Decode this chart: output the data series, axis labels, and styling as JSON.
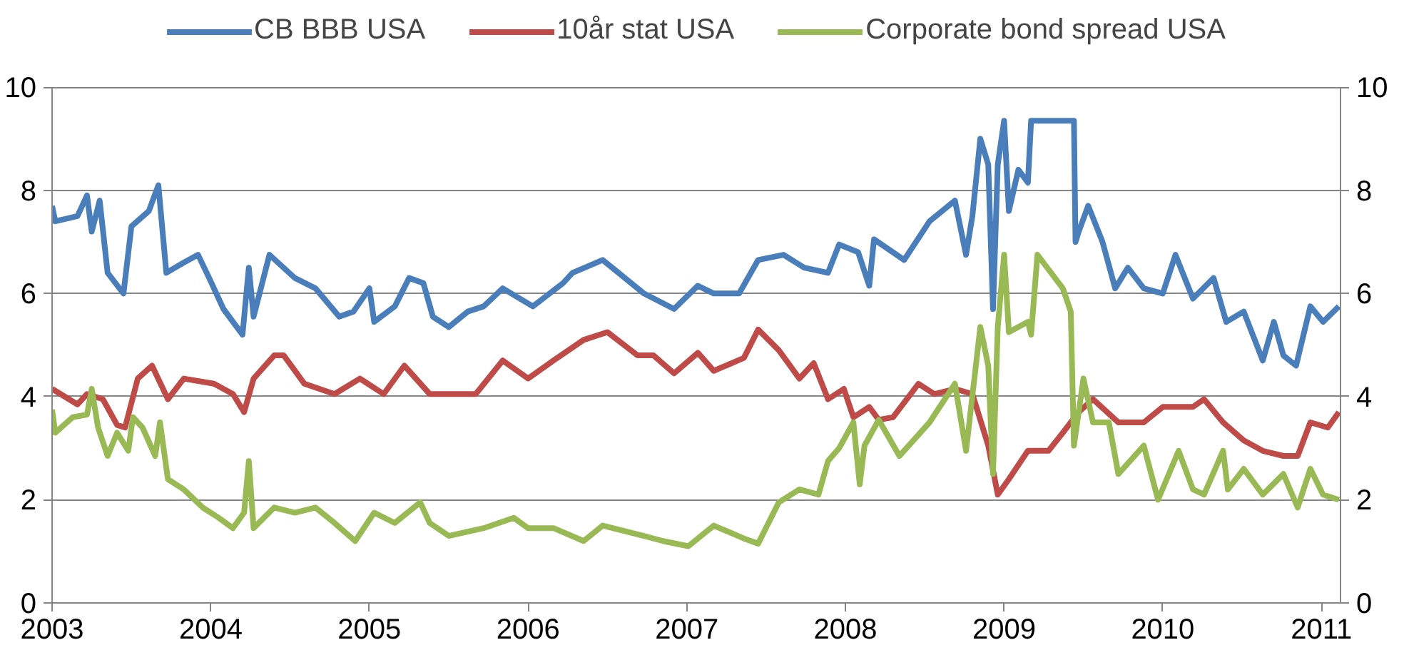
{
  "chart_data": {
    "type": "line",
    "legend": "top",
    "grid": "y",
    "line_style": "solid",
    "xlim": [
      2003,
      2011.12
    ],
    "xticks": [
      2003,
      2004,
      2005,
      2006,
      2007,
      2008,
      2009,
      2010,
      2011
    ],
    "ylim": [
      0,
      10
    ],
    "yticks": [
      0,
      2,
      4,
      6,
      8,
      10
    ],
    "y2lim": [
      0,
      10
    ],
    "y2ticks": [
      0,
      2,
      4,
      6,
      8,
      10
    ],
    "series": [
      {
        "name": "CB BBB USA",
        "color": "#4a7ebb",
        "x": [
          2003.0,
          2003.02,
          2003.16,
          2003.22,
          2003.25,
          2003.3,
          2003.35,
          2003.45,
          2003.5,
          2003.61,
          2003.67,
          2003.72,
          2003.83,
          2003.92,
          2003.99,
          2004.08,
          2004.2,
          2004.24,
          2004.27,
          2004.37,
          2004.53,
          2004.66,
          2004.81,
          2004.9,
          2005.0,
          2005.03,
          2005.16,
          2005.25,
          2005.34,
          2005.4,
          2005.5,
          2005.62,
          2005.72,
          2005.84,
          2006.03,
          2006.22,
          2006.28,
          2006.47,
          2006.57,
          2006.73,
          2006.92,
          2007.07,
          2007.17,
          2007.33,
          2007.45,
          2007.61,
          2007.74,
          2007.89,
          2007.96,
          2008.08,
          2008.15,
          2008.18,
          2008.37,
          2008.53,
          2008.69,
          2008.76,
          2008.8,
          2008.85,
          2008.9,
          2008.93,
          2008.96,
          2009.0,
          2009.03,
          2009.09,
          2009.15,
          2009.17,
          2009.44,
          2009.45,
          2009.47,
          2009.53,
          2009.62,
          2009.7,
          2009.78,
          2009.88,
          2010.0,
          2010.08,
          2010.19,
          2010.32,
          2010.4,
          2010.51,
          2010.63,
          2010.7,
          2010.76,
          2010.84,
          2010.93,
          2011.01,
          2011.11
        ],
        "values": [
          7.7,
          7.4,
          7.5,
          7.9,
          7.2,
          7.8,
          6.4,
          6.0,
          7.3,
          7.6,
          8.1,
          6.4,
          6.6,
          6.75,
          6.3,
          5.7,
          5.2,
          6.5,
          5.55,
          6.75,
          6.3,
          6.1,
          5.55,
          5.65,
          6.1,
          5.45,
          5.75,
          6.3,
          6.2,
          5.55,
          5.35,
          5.65,
          5.75,
          6.1,
          5.75,
          6.2,
          6.4,
          6.65,
          6.4,
          6.0,
          5.7,
          6.15,
          6.0,
          6.0,
          6.65,
          6.75,
          6.5,
          6.4,
          6.95,
          6.8,
          6.15,
          7.05,
          6.65,
          7.4,
          7.8,
          6.75,
          7.5,
          9.0,
          8.5,
          5.7,
          8.5,
          9.35,
          7.6,
          8.4,
          8.15,
          9.35,
          9.35,
          7.0,
          7.2,
          7.7,
          7.0,
          6.1,
          6.5,
          6.1,
          6.0,
          6.75,
          5.9,
          6.3,
          5.45,
          5.65,
          4.7,
          5.45,
          4.8,
          4.6,
          5.75,
          5.45,
          5.75
        ]
      },
      {
        "name": "10år stat USA",
        "color": "#be4b48",
        "x": [
          2003.0,
          2003.16,
          2003.22,
          2003.32,
          2003.41,
          2003.46,
          2003.54,
          2003.63,
          2003.73,
          2003.83,
          2004.02,
          2004.14,
          2004.21,
          2004.27,
          2004.4,
          2004.46,
          2004.59,
          2004.78,
          2004.94,
          2005.09,
          2005.22,
          2005.38,
          2005.5,
          2005.67,
          2005.84,
          2006.0,
          2006.16,
          2006.35,
          2006.5,
          2006.69,
          2006.79,
          2006.92,
          2007.07,
          2007.17,
          2007.36,
          2007.45,
          2007.58,
          2007.71,
          2007.8,
          2007.89,
          2007.99,
          2008.05,
          2008.15,
          2008.21,
          2008.3,
          2008.46,
          2008.56,
          2008.69,
          2008.8,
          2008.9,
          2008.96,
          2009.03,
          2009.15,
          2009.28,
          2009.37,
          2009.47,
          2009.56,
          2009.72,
          2009.88,
          2010.0,
          2010.19,
          2010.26,
          2010.38,
          2010.51,
          2010.63,
          2010.76,
          2010.85,
          2010.93,
          2011.04,
          2011.11
        ],
        "values": [
          4.15,
          3.85,
          4.05,
          3.95,
          3.45,
          3.4,
          4.35,
          4.6,
          3.95,
          4.35,
          4.25,
          4.05,
          3.7,
          4.35,
          4.8,
          4.8,
          4.25,
          4.05,
          4.35,
          4.05,
          4.6,
          4.05,
          4.05,
          4.05,
          4.7,
          4.35,
          4.7,
          5.1,
          5.25,
          4.8,
          4.8,
          4.45,
          4.85,
          4.5,
          4.75,
          5.3,
          4.9,
          4.35,
          4.65,
          3.95,
          4.15,
          3.6,
          3.8,
          3.55,
          3.6,
          4.25,
          4.05,
          4.15,
          4.05,
          3.05,
          2.1,
          2.4,
          2.95,
          2.95,
          3.3,
          3.7,
          3.95,
          3.5,
          3.5,
          3.8,
          3.8,
          3.95,
          3.5,
          3.15,
          2.95,
          2.85,
          2.85,
          3.5,
          3.4,
          3.7
        ]
      },
      {
        "name": "Corporate bond spread USA",
        "color": "#98b954",
        "x": [
          2003.0,
          2003.02,
          2003.13,
          2003.22,
          2003.25,
          2003.29,
          2003.35,
          2003.41,
          2003.48,
          2003.51,
          2003.57,
          2003.65,
          2003.68,
          2003.73,
          2003.83,
          2003.95,
          2004.05,
          2004.14,
          2004.21,
          2004.24,
          2004.27,
          2004.4,
          2004.53,
          2004.66,
          2004.78,
          2004.91,
          2005.03,
          2005.16,
          2005.32,
          2005.38,
          2005.5,
          2005.72,
          2005.91,
          2006.0,
          2006.16,
          2006.35,
          2006.47,
          2006.73,
          2006.85,
          2007.01,
          2007.17,
          2007.36,
          2007.45,
          2007.58,
          2007.71,
          2007.83,
          2007.89,
          2007.96,
          2008.05,
          2008.09,
          2008.12,
          2008.21,
          2008.34,
          2008.53,
          2008.69,
          2008.76,
          2008.85,
          2008.9,
          2008.93,
          2008.96,
          2009.0,
          2009.03,
          2009.15,
          2009.17,
          2009.21,
          2009.37,
          2009.42,
          2009.44,
          2009.5,
          2009.56,
          2009.66,
          2009.72,
          2009.88,
          2009.97,
          2010.1,
          2010.19,
          2010.26,
          2010.38,
          2010.41,
          2010.51,
          2010.63,
          2010.76,
          2010.85,
          2010.93,
          2011.01,
          2011.11
        ],
        "values": [
          3.75,
          3.3,
          3.6,
          3.65,
          4.15,
          3.4,
          2.85,
          3.3,
          2.95,
          3.6,
          3.4,
          2.85,
          3.5,
          2.4,
          2.2,
          1.85,
          1.65,
          1.45,
          1.75,
          2.75,
          1.45,
          1.85,
          1.75,
          1.85,
          1.55,
          1.2,
          1.75,
          1.55,
          1.95,
          1.55,
          1.3,
          1.45,
          1.65,
          1.45,
          1.45,
          1.2,
          1.5,
          1.3,
          1.2,
          1.1,
          1.5,
          1.25,
          1.15,
          1.95,
          2.2,
          2.1,
          2.75,
          3.0,
          3.5,
          2.3,
          3.05,
          3.55,
          2.85,
          3.5,
          4.25,
          2.95,
          5.35,
          4.6,
          2.5,
          5.35,
          6.75,
          5.25,
          5.45,
          5.2,
          6.75,
          6.1,
          5.65,
          3.05,
          4.35,
          3.5,
          3.5,
          2.5,
          3.05,
          2.0,
          2.95,
          2.2,
          2.1,
          2.95,
          2.2,
          2.6,
          2.1,
          2.5,
          1.85,
          2.6,
          2.1,
          2.0
        ]
      }
    ]
  }
}
